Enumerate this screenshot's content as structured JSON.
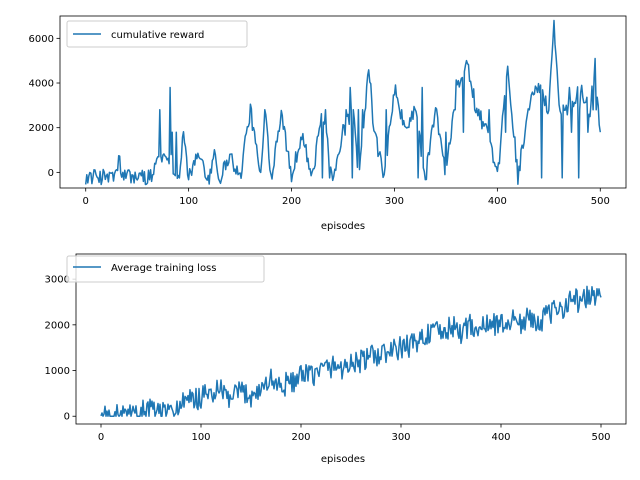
{
  "chart_data": [
    {
      "type": "line",
      "xlabel": "episodes",
      "ylabel": "",
      "xlim": [
        -25,
        525
      ],
      "ylim": [
        -700,
        7000
      ],
      "xticks": [
        0,
        100,
        200,
        300,
        400,
        500
      ],
      "yticks": [
        0,
        2000,
        4000,
        6000
      ],
      "legend_placement": "top-left",
      "grid": false,
      "series": [
        {
          "name": "cumulative reward",
          "color": "#1f77b4",
          "anchors": [
            [
              0,
              -200
            ],
            [
              10,
              -210
            ],
            [
              20,
              -190
            ],
            [
              30,
              -180
            ],
            [
              32,
              850
            ],
            [
              35,
              -150
            ],
            [
              40,
              -180
            ],
            [
              50,
              -190
            ],
            [
              60,
              -200
            ],
            [
              65,
              -180
            ],
            [
              70,
              800
            ],
            [
              75,
              700
            ],
            [
              80,
              850
            ],
            [
              90,
              -300
            ],
            [
              95,
              1800
            ],
            [
              100,
              -250
            ],
            [
              110,
              800
            ],
            [
              120,
              -300
            ],
            [
              125,
              1000
            ],
            [
              130,
              -300
            ],
            [
              140,
              800
            ],
            [
              150,
              -300
            ],
            [
              155,
              1400
            ],
            [
              160,
              2800
            ],
            [
              170,
              -200
            ],
            [
              175,
              2900
            ],
            [
              180,
              -300
            ],
            [
              190,
              2800
            ],
            [
              200,
              -200
            ],
            [
              210,
              1800
            ],
            [
              220,
              -300
            ],
            [
              230,
              2800
            ],
            [
              240,
              -200
            ],
            [
              250,
              1800
            ],
            [
              260,
              2800
            ],
            [
              265,
              -300
            ],
            [
              270,
              1800
            ],
            [
              275,
              4900
            ],
            [
              280,
              1800
            ],
            [
              290,
              -200
            ],
            [
              300,
              3800
            ],
            [
              310,
              1800
            ],
            [
              320,
              2900
            ],
            [
              330,
              -300
            ],
            [
              340,
              2900
            ],
            [
              350,
              -250
            ],
            [
              360,
              3800
            ],
            [
              370,
              4900
            ],
            [
              380,
              2800
            ],
            [
              390,
              1800
            ],
            [
              400,
              -300
            ],
            [
              410,
              4800
            ],
            [
              420,
              -200
            ],
            [
              430,
              2900
            ],
            [
              440,
              3800
            ],
            [
              450,
              2800
            ],
            [
              455,
              6900
            ],
            [
              460,
              2800
            ],
            [
              470,
              2900
            ],
            [
              480,
              3800
            ],
            [
              490,
              2800
            ],
            [
              495,
              4900
            ],
            [
              500,
              1800
            ]
          ]
        }
      ]
    },
    {
      "type": "line",
      "xlabel": "episodes",
      "ylabel": "",
      "xlim": [
        -25,
        525
      ],
      "ylim": [
        -170,
        3550
      ],
      "xticks": [
        0,
        100,
        200,
        300,
        400,
        500
      ],
      "yticks": [
        0,
        1000,
        2000,
        3000
      ],
      "legend_placement": "top-left",
      "grid": false,
      "series": [
        {
          "name": "Average training loss",
          "color": "#1f77b4",
          "anchors": [
            [
              0,
              0
            ],
            [
              35,
              0
            ],
            [
              45,
              150
            ],
            [
              60,
              100
            ],
            [
              70,
              50
            ],
            [
              80,
              250
            ],
            [
              90,
              350
            ],
            [
              100,
              400
            ],
            [
              110,
              500
            ],
            [
              120,
              550
            ],
            [
              130,
              350
            ],
            [
              140,
              550
            ],
            [
              150,
              450
            ],
            [
              160,
              600
            ],
            [
              170,
              800
            ],
            [
              180,
              650
            ],
            [
              190,
              750
            ],
            [
              200,
              850
            ],
            [
              210,
              900
            ],
            [
              220,
              1000
            ],
            [
              230,
              1100
            ],
            [
              240,
              1050
            ],
            [
              250,
              1150
            ],
            [
              260,
              1200
            ],
            [
              270,
              1300
            ],
            [
              280,
              1350
            ],
            [
              290,
              1400
            ],
            [
              300,
              1500
            ],
            [
              310,
              1550
            ],
            [
              320,
              1700
            ],
            [
              330,
              1850
            ],
            [
              340,
              1800
            ],
            [
              350,
              1950
            ],
            [
              360,
              1850
            ],
            [
              370,
              2000
            ],
            [
              380,
              1900
            ],
            [
              390,
              2050
            ],
            [
              400,
              2000
            ],
            [
              410,
              2100
            ],
            [
              420,
              2050
            ],
            [
              430,
              2150
            ],
            [
              440,
              2100
            ],
            [
              450,
              2250
            ],
            [
              460,
              2350
            ],
            [
              470,
              2600
            ],
            [
              480,
              2500
            ],
            [
              490,
              2650
            ],
            [
              500,
              2600
            ]
          ]
        }
      ]
    }
  ]
}
